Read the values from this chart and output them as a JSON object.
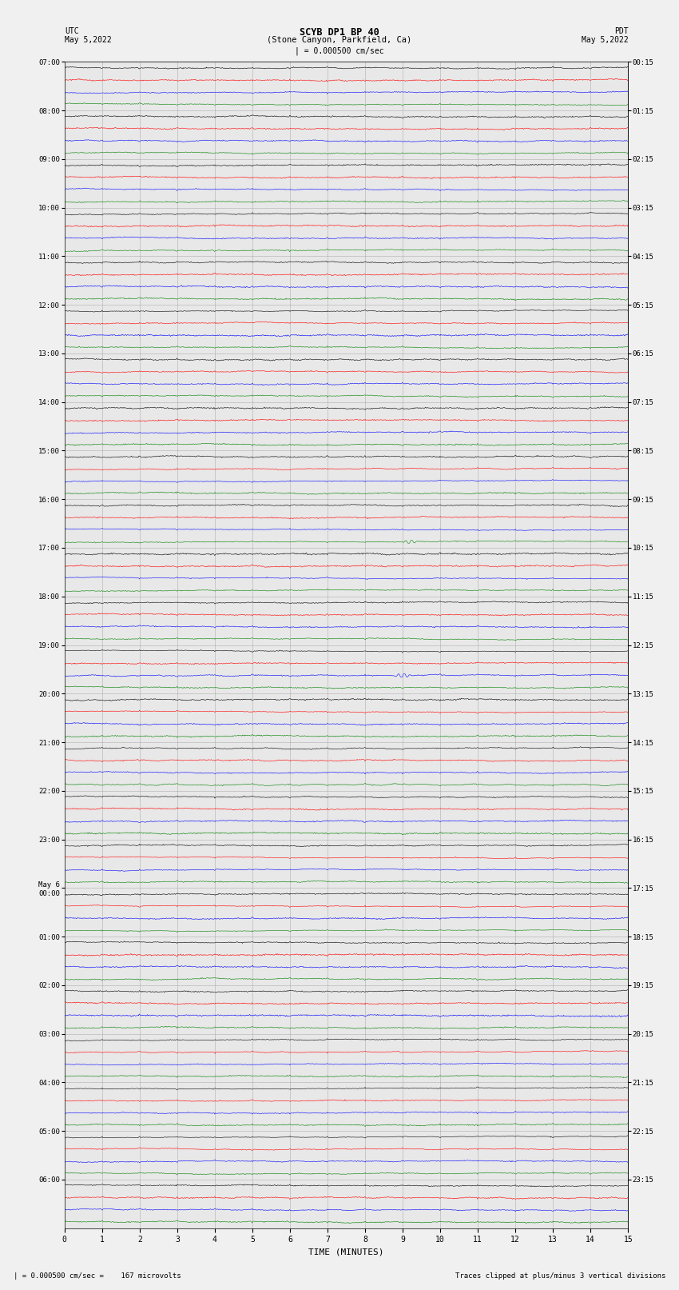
{
  "title_line1": "SCYB DP1 BP 40",
  "title_line2": "(Stone Canyon, Parkfield, Ca)",
  "scale_text": "| = 0.000500 cm/sec",
  "left_label_top": "UTC",
  "left_label_date": "May 5,2022",
  "right_label_top": "PDT",
  "right_label_date": "May 5,2022",
  "xlabel": "TIME (MINUTES)",
  "footer_left": "| = 0.000500 cm/sec =    167 microvolts",
  "footer_right": "Traces clipped at plus/minus 3 vertical divisions",
  "utc_labels": [
    "07:00",
    "08:00",
    "09:00",
    "10:00",
    "11:00",
    "12:00",
    "13:00",
    "14:00",
    "15:00",
    "16:00",
    "17:00",
    "18:00",
    "19:00",
    "20:00",
    "21:00",
    "22:00",
    "23:00",
    "May 6\n00:00",
    "01:00",
    "02:00",
    "03:00",
    "04:00",
    "05:00",
    "06:00"
  ],
  "pdt_labels": [
    "00:15",
    "01:15",
    "02:15",
    "03:15",
    "04:15",
    "05:15",
    "06:15",
    "07:15",
    "08:15",
    "09:15",
    "10:15",
    "11:15",
    "12:15",
    "13:15",
    "14:15",
    "15:15",
    "16:15",
    "17:15",
    "18:15",
    "19:15",
    "20:15",
    "21:15",
    "22:15",
    "23:15"
  ],
  "num_rows": 24,
  "traces_per_row": 4,
  "trace_colors": [
    "black",
    "red",
    "blue",
    "green"
  ],
  "bg_color": "#f0f0f0",
  "plot_bg_color": "#e8e8e8",
  "time_minutes": 15,
  "noise_amp": 0.035,
  "seed": 12345,
  "special_events": [
    {
      "row": 9,
      "trace": 3,
      "time": 9.2,
      "amp": 0.18
    },
    {
      "row": 12,
      "trace": 2,
      "time": 9.0,
      "amp": 0.22
    }
  ]
}
